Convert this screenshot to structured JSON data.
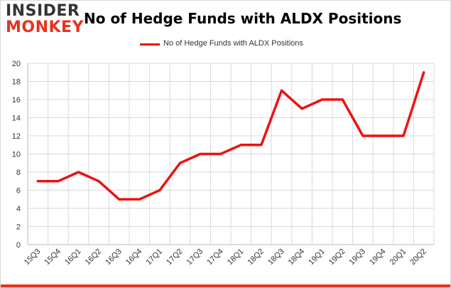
{
  "logo": {
    "line1": "INSIDER",
    "line2": "MONKEY"
  },
  "chart_data": {
    "type": "line",
    "title": "No of Hedge Funds with ALDX Positions",
    "categories": [
      "15Q3",
      "15Q4",
      "16Q1",
      "16Q2",
      "16Q3",
      "16Q4",
      "17Q1",
      "17Q2",
      "17Q3",
      "17Q4",
      "18Q1",
      "18Q2",
      "18Q3",
      "18Q4",
      "19Q1",
      "19Q2",
      "19Q3",
      "19Q4",
      "20Q1",
      "20Q2"
    ],
    "series": [
      {
        "name": "No of Hedge Funds with ALDX Positions",
        "values": [
          7,
          7,
          8,
          7,
          5,
          5,
          6,
          9,
          10,
          10,
          11,
          11,
          17,
          15,
          16,
          16,
          12,
          12,
          12,
          19
        ]
      }
    ],
    "ylim": [
      0,
      20
    ],
    "yticks": [
      0,
      2,
      4,
      6,
      8,
      10,
      12,
      14,
      16,
      18,
      20
    ],
    "xlabel": "",
    "ylabel": "",
    "grid": true,
    "legend": "top-center"
  },
  "colors": {
    "series": "#ee1111",
    "grid": "#d9d9d9",
    "axis": "#bbbbbb",
    "accent": "#e8331e"
  }
}
